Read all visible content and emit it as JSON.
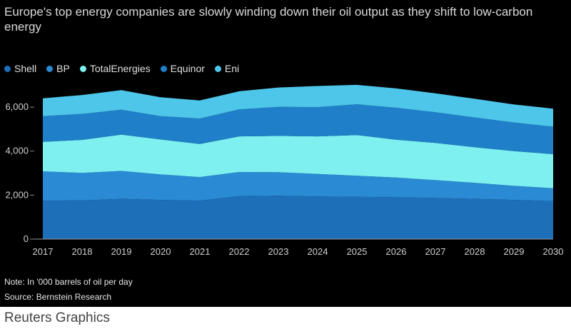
{
  "title": "Europe's top energy companies are slowly winding down their oil output as they shift to low-carbon energy",
  "note": "Note: In '000 barrels of oil per day",
  "source": "Source: Bernstein Research",
  "footer": "Reuters Graphics",
  "chart_data": {
    "type": "area",
    "stacked": true,
    "x": [
      2017,
      2018,
      2019,
      2020,
      2021,
      2022,
      2023,
      2024,
      2025,
      2026,
      2027,
      2028,
      2029,
      2030
    ],
    "x_tick_labels": [
      "2017",
      "2018",
      "2019",
      "2020",
      "2021",
      "2022",
      "2023",
      "2024",
      "2025",
      "2026",
      "2027",
      "2028",
      "2029",
      "2030"
    ],
    "y_ticks": [
      0,
      2000,
      4000,
      6000
    ],
    "y_tick_labels": [
      "0",
      "2,000",
      "4,000",
      "6,000"
    ],
    "ylim": [
      0,
      7300
    ],
    "legend_position": "top-left",
    "series": [
      {
        "name": "Shell",
        "color": "#1d6fb8",
        "values": [
          1750,
          1760,
          1830,
          1780,
          1750,
          1950,
          1970,
          1940,
          1920,
          1900,
          1870,
          1830,
          1780,
          1730
        ]
      },
      {
        "name": "BP",
        "color": "#2a8ad4",
        "values": [
          1330,
          1250,
          1270,
          1160,
          1070,
          1100,
          1070,
          1020,
          960,
          900,
          810,
          730,
          640,
          580
        ]
      },
      {
        "name": "TotalEnergies",
        "color": "#7ef0f0",
        "values": [
          1340,
          1500,
          1650,
          1590,
          1500,
          1620,
          1650,
          1710,
          1850,
          1720,
          1690,
          1620,
          1580,
          1550
        ]
      },
      {
        "name": "Equinor",
        "color": "#1f7fc9",
        "values": [
          1170,
          1180,
          1130,
          1060,
          1160,
          1230,
          1320,
          1330,
          1400,
          1450,
          1400,
          1350,
          1300,
          1250
        ]
      },
      {
        "name": "Eni",
        "color": "#4ec6ea",
        "values": [
          810,
          860,
          890,
          860,
          820,
          820,
          880,
          960,
          880,
          880,
          860,
          850,
          820,
          820
        ]
      }
    ]
  }
}
